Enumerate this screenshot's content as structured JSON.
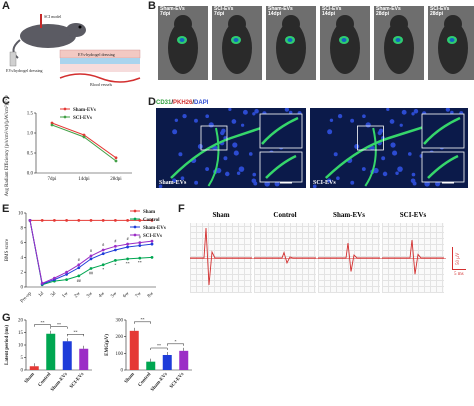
{
  "panels": {
    "a": {
      "label": "A",
      "texts": [
        "SCI model",
        "EVs/hydrogel dressing",
        "Blood vessels",
        "EVs-hydrogel dressing"
      ]
    },
    "b": {
      "label": "B",
      "mice": [
        {
          "group": "Sham-EVs",
          "time": "7dpi"
        },
        {
          "group": "SCI-EVs",
          "time": "7dpi"
        },
        {
          "group": "Sham-EVs",
          "time": "14dpi"
        },
        {
          "group": "SCI-EVs",
          "time": "14dpi"
        },
        {
          "group": "Sham-EVs",
          "time": "28dpi"
        },
        {
          "group": "SCI-EVs",
          "time": "28dpi"
        }
      ]
    },
    "d": {
      "label": "D",
      "stain": {
        "cd31": "CD31",
        "sep": "/",
        "pkh": "PKH26",
        "sep2": "/",
        "dapi": "DAPI"
      },
      "left_tag": "Sham-EVs",
      "right_tag": "SCI-EVs"
    },
    "f": {
      "label": "F",
      "groups": [
        "Sham",
        "Control",
        "Sham-EVs",
        "SCI-EVs"
      ],
      "scale_v": "50 μV",
      "scale_t": "5 ms"
    }
  },
  "chart_data": [
    {
      "id": "C",
      "label": "C",
      "type": "line",
      "x": [
        "7dpi",
        "14dpi",
        "28dpi"
      ],
      "ylabel": "Avg Radiant Efficiency (p/s/cm²/sr)/(μW/cm²) (×10⁸)",
      "ylim": [
        0.0,
        1.5
      ],
      "yticks": [
        "0.0",
        "0.5",
        "1.0",
        "1.5"
      ],
      "series": [
        {
          "name": "Sham-EVs",
          "color": "#e53935",
          "values": [
            1.25,
            0.95,
            0.38
          ]
        },
        {
          "name": "SCI-EVs",
          "color": "#43a047",
          "values": [
            1.2,
            0.9,
            0.3
          ]
        }
      ]
    },
    {
      "id": "E",
      "label": "E",
      "type": "line",
      "x": [
        "Pre-op",
        "1d",
        "3d",
        "1w",
        "2w",
        "3w",
        "4w",
        "5w",
        "6w",
        "7w",
        "8w"
      ],
      "ylabel": "BMS score",
      "ylim": [
        0,
        10
      ],
      "yticks": [
        "0",
        "2",
        "4",
        "6",
        "8",
        "10"
      ],
      "series": [
        {
          "name": "Sham",
          "color": "#e53935",
          "values": [
            9,
            9,
            9,
            9,
            9,
            9,
            9,
            9,
            9,
            9,
            9
          ]
        },
        {
          "name": "Control",
          "color": "#00a651",
          "values": [
            9,
            0.3,
            0.8,
            1.0,
            1.5,
            2.5,
            3.0,
            3.6,
            3.8,
            3.9,
            4.0
          ]
        },
        {
          "name": "Sham-EVs",
          "color": "#1e3cd9",
          "values": [
            9,
            0.4,
            1.0,
            1.7,
            2.6,
            3.8,
            4.5,
            5.0,
            5.4,
            5.6,
            5.8
          ]
        },
        {
          "name": "SCI-EVs",
          "color": "#9b2dc6",
          "values": [
            9,
            0.5,
            1.2,
            2.0,
            3.0,
            4.2,
            5.0,
            5.5,
            5.8,
            6.0,
            6.2
          ]
        }
      ],
      "annotations": [
        "#",
        "#",
        "#",
        "#",
        "#",
        "#",
        "##",
        "##",
        "*",
        "*",
        "**",
        "**"
      ]
    },
    {
      "id": "G1",
      "label": "G",
      "type": "bar",
      "categories": [
        "Sham",
        "Control",
        "Sham-EVs",
        "SCI-EVs"
      ],
      "values": [
        1.5,
        14.5,
        11.5,
        8.5
      ],
      "colors": [
        "#e53935",
        "#00a651",
        "#1e3cd9",
        "#9b2dc6"
      ],
      "ylabel": "Latent period (ms)",
      "ylim": [
        0,
        20
      ],
      "yticks": [
        "0",
        "5",
        "10",
        "15",
        "20"
      ],
      "sig": [
        "**",
        "**",
        "**"
      ]
    },
    {
      "id": "G2",
      "type": "bar",
      "categories": [
        "Sham",
        "Control",
        "Sham-EVs",
        "SCI-EVs"
      ],
      "values": [
        235,
        50,
        90,
        115
      ],
      "colors": [
        "#e53935",
        "#00a651",
        "#1e3cd9",
        "#9b2dc6"
      ],
      "ylabel": "EMG(μV)",
      "ylim": [
        0,
        300
      ],
      "yticks": [
        "0",
        "100",
        "200",
        "300"
      ],
      "sig": [
        "**",
        "**",
        "*"
      ]
    }
  ]
}
